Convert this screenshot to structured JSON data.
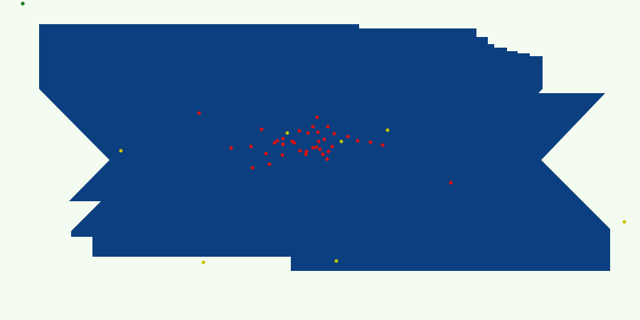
{
  "colors": {
    "background": "#f4fbf0",
    "territory": "#0b3f7f",
    "enemy": "#e01010",
    "pickup": "#c8c400",
    "player": "#1a7a1a"
  },
  "units": {
    "player": {
      "icon": "player-dot"
    },
    "enemies": {
      "icon": "enemy-dot",
      "count": 44
    },
    "pickups": {
      "icon": "pickup-dot",
      "count": 7
    }
  }
}
